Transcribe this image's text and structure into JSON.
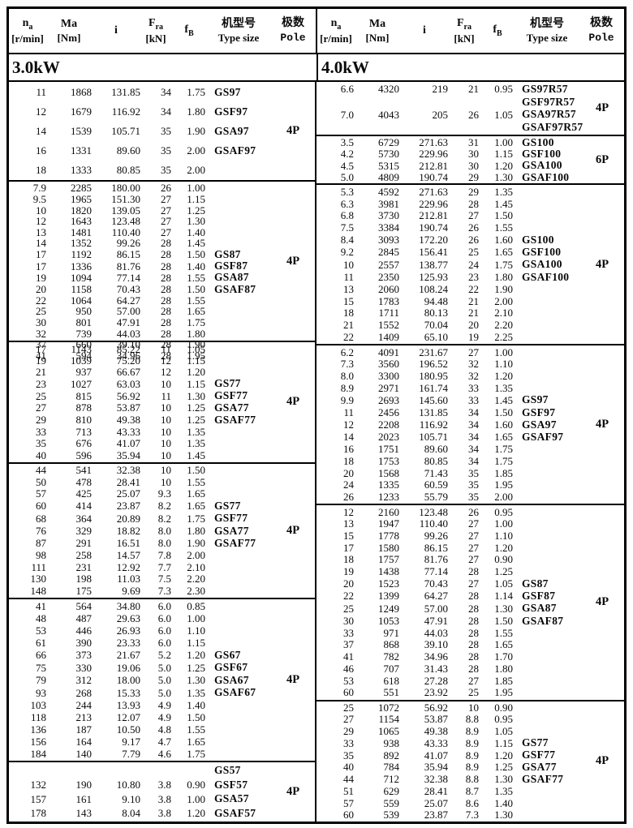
{
  "header": {
    "columns": [
      {
        "sym": "n",
        "sub": "a",
        "unit": "[r/min]"
      },
      {
        "sym": "Ma",
        "sub": "",
        "unit": "[Nm]"
      },
      {
        "sym": "i",
        "sub": "",
        "unit": ""
      },
      {
        "sym": "F",
        "sub": "ra",
        "unit": "[kN]"
      },
      {
        "sym": "f",
        "sub": "B",
        "unit": ""
      },
      {
        "sym": "机型号",
        "sub": "",
        "unit": "Type size"
      },
      {
        "sym": "极数",
        "sub": "",
        "unit": "Pole"
      }
    ]
  },
  "power_groups": [
    {
      "power": "3.0kW",
      "sections": [
        {
          "pole": "4P",
          "type_start": 0,
          "types": [
            "GS97",
            "GSF97",
            "GSA97",
            "GSAF97"
          ],
          "rows": [
            [
              "11",
              "1868",
              "131.85",
              "34",
              "1.75"
            ],
            [
              "12",
              "1679",
              "116.92",
              "34",
              "1.80"
            ],
            [
              "14",
              "1539",
              "105.71",
              "35",
              "1.90"
            ],
            [
              "16",
              "1331",
              "89.60",
              "35",
              "2.00"
            ],
            [
              "18",
              "1333",
              "80.85",
              "35",
              "2.00"
            ]
          ]
        },
        {
          "pole": "4P",
          "type_start": 6,
          "types": [
            "GS87",
            "GSF87",
            "GSA87",
            "GSAF87"
          ],
          "rows": [
            [
              "7.9",
              "2285",
              "180.00",
              "26",
              "1.00"
            ],
            [
              "9.5",
              "1965",
              "151.30",
              "27",
              "1.15"
            ],
            [
              "10",
              "1820",
              "139.05",
              "27",
              "1.25"
            ],
            [
              "12",
              "1643",
              "123.48",
              "27",
              "1.30"
            ],
            [
              "13",
              "1481",
              "110.40",
              "27",
              "1.40"
            ],
            [
              "14",
              "1352",
              "99.26",
              "28",
              "1.45"
            ],
            [
              "17",
              "1192",
              "86.15",
              "28",
              "1.50"
            ],
            [
              "17",
              "1336",
              "81.76",
              "28",
              "1.40"
            ],
            [
              "19",
              "1094",
              "77.14",
              "28",
              "1.55"
            ],
            [
              "20",
              "1158",
              "70.43",
              "28",
              "1.50"
            ],
            [
              "22",
              "1064",
              "64.27",
              "28",
              "1.55"
            ],
            [
              "25",
              "950",
              "57.00",
              "28",
              "1.65"
            ],
            [
              "30",
              "801",
              "47.91",
              "28",
              "1.75"
            ],
            [
              "32",
              "739",
              "44.03",
              "28",
              "1.80"
            ],
            [
              "37",
              "660",
              "39.10",
              "28",
              "1.90"
            ],
            [
              "41",
              "594",
              "34.96",
              "28",
              "1.95"
            ]
          ]
        },
        {
          "pole": "4P",
          "type_start": 3,
          "types": [
            "GS77",
            "GSF77",
            "GSA77",
            "GSAF77"
          ],
          "rows": [
            [
              "17",
              "1143",
              "85.22",
              "11",
              "1.05"
            ],
            [
              "19",
              "1039",
              "75.20",
              "12",
              "1.15"
            ],
            [
              "21",
              "937",
              "66.67",
              "12",
              "1.20"
            ],
            [
              "23",
              "1027",
              "63.03",
              "10",
              "1.15"
            ],
            [
              "25",
              "815",
              "56.92",
              "11",
              "1.30"
            ],
            [
              "27",
              "878",
              "53.87",
              "10",
              "1.25"
            ],
            [
              "29",
              "810",
              "49.38",
              "10",
              "1.25"
            ],
            [
              "33",
              "713",
              "43.33",
              "10",
              "1.35"
            ],
            [
              "35",
              "676",
              "41.07",
              "10",
              "1.35"
            ],
            [
              "40",
              "596",
              "35.94",
              "10",
              "1.45"
            ]
          ]
        },
        {
          "pole": "4P",
          "type_start": 3,
          "types": [
            "GS77",
            "GSF77",
            "GSA77",
            "GSAF77"
          ],
          "rows": [
            [
              "44",
              "541",
              "32.38",
              "10",
              "1.50"
            ],
            [
              "50",
              "478",
              "28.41",
              "10",
              "1.55"
            ],
            [
              "57",
              "425",
              "25.07",
              "9.3",
              "1.65"
            ],
            [
              "60",
              "414",
              "23.87",
              "8.2",
              "1.65"
            ],
            [
              "68",
              "364",
              "20.89",
              "8.2",
              "1.75"
            ],
            [
              "76",
              "329",
              "18.82",
              "8.0",
              "1.80"
            ],
            [
              "87",
              "291",
              "16.51",
              "8.0",
              "1.90"
            ],
            [
              "98",
              "258",
              "14.57",
              "7.8",
              "2.00"
            ],
            [
              "111",
              "231",
              "12.92",
              "7.7",
              "2.10"
            ],
            [
              "130",
              "198",
              "11.03",
              "7.5",
              "2.20"
            ],
            [
              "148",
              "175",
              "9.69",
              "7.3",
              "2.30"
            ]
          ]
        },
        {
          "pole": "4P",
          "type_start": 4,
          "types": [
            "GS67",
            "GSF67",
            "GSA67",
            "GSAF67"
          ],
          "rows": [
            [
              "41",
              "564",
              "34.80",
              "6.0",
              "0.85"
            ],
            [
              "48",
              "487",
              "29.63",
              "6.0",
              "1.00"
            ],
            [
              "53",
              "446",
              "26.93",
              "6.0",
              "1.10"
            ],
            [
              "61",
              "390",
              "23.33",
              "6.0",
              "1.15"
            ],
            [
              "66",
              "373",
              "21.67",
              "5.2",
              "1.20"
            ],
            [
              "75",
              "330",
              "19.06",
              "5.0",
              "1.25"
            ],
            [
              "79",
              "312",
              "18.00",
              "5.0",
              "1.30"
            ],
            [
              "93",
              "268",
              "15.33",
              "5.0",
              "1.35"
            ],
            [
              "103",
              "244",
              "13.93",
              "4.9",
              "1.40"
            ],
            [
              "118",
              "213",
              "12.07",
              "4.9",
              "1.50"
            ],
            [
              "136",
              "187",
              "10.50",
              "4.8",
              "1.55"
            ],
            [
              "156",
              "164",
              "9.17",
              "4.7",
              "1.65"
            ],
            [
              "184",
              "140",
              "7.79",
              "4.6",
              "1.75"
            ]
          ]
        },
        {
          "pole": "4P",
          "type_start": 0,
          "types": [
            "GS57",
            "GSF57",
            "GSA57",
            "GSAF57"
          ],
          "rows": [
            [
              "",
              "",
              "",
              "",
              ""
            ],
            [
              "132",
              "190",
              "10.80",
              "3.8",
              "0.90"
            ],
            [
              "157",
              "161",
              "9.10",
              "3.8",
              "1.00"
            ],
            [
              "178",
              "143",
              "8.04",
              "3.8",
              "1.20"
            ]
          ]
        }
      ]
    },
    {
      "power": "4.0kW",
      "sections": [
        {
          "pole": "4P",
          "type_start": 0,
          "types": [
            "GS97R57",
            "GSF97R57",
            "GSA97R57",
            "GSAF97R57"
          ],
          "rows": [
            [
              "6.6",
              "4320",
              "219",
              "21",
              "0.95"
            ],
            [
              "",
              "",
              "",
              "",
              ""
            ],
            [
              "7.0",
              "4043",
              "205",
              "26",
              "1.05"
            ],
            [
              "",
              "",
              "",
              "",
              ""
            ]
          ]
        },
        {
          "pole": "6P",
          "type_start": 0,
          "types": [
            "GS100",
            "GSF100",
            "GSA100",
            "GSAF100"
          ],
          "rows": [
            [
              "3.5",
              "6729",
              "271.63",
              "31",
              "1.00"
            ],
            [
              "4.2",
              "5730",
              "229.96",
              "30",
              "1.15"
            ],
            [
              "4.5",
              "5315",
              "212.81",
              "30",
              "1.20"
            ],
            [
              "5.0",
              "4809",
              "190.74",
              "29",
              "1.30"
            ]
          ]
        },
        {
          "pole": "4P",
          "type_start": 4,
          "types": [
            "GS100",
            "GSF100",
            "GSA100",
            "GSAF100"
          ],
          "rows": [
            [
              "5.3",
              "4592",
              "271.63",
              "29",
              "1.35"
            ],
            [
              "6.3",
              "3981",
              "229.96",
              "28",
              "1.45"
            ],
            [
              "6.8",
              "3730",
              "212.81",
              "27",
              "1.50"
            ],
            [
              "7.5",
              "3384",
              "190.74",
              "26",
              "1.55"
            ],
            [
              "8.4",
              "3093",
              "172.20",
              "26",
              "1.60"
            ],
            [
              "9.2",
              "2845",
              "156.41",
              "25",
              "1.65"
            ],
            [
              "10",
              "2557",
              "138.77",
              "24",
              "1.75"
            ],
            [
              "11",
              "2350",
              "125.93",
              "23",
              "1.80"
            ],
            [
              "13",
              "2060",
              "108.24",
              "22",
              "1.90"
            ],
            [
              "15",
              "1783",
              "94.48",
              "21",
              "2.00"
            ],
            [
              "18",
              "1711",
              "80.13",
              "21",
              "2.10"
            ],
            [
              "21",
              "1552",
              "70.04",
              "20",
              "2.20"
            ],
            [
              "22",
              "1409",
              "65.10",
              "19",
              "2.25"
            ]
          ]
        },
        {
          "pole": "4P",
          "type_start": 4,
          "types": [
            "GS97",
            "GSF97",
            "GSA97",
            "GSAF97"
          ],
          "rows": [
            [
              "6.2",
              "4091",
              "231.67",
              "27",
              "1.00"
            ],
            [
              "7.3",
              "3560",
              "196.52",
              "32",
              "1.10"
            ],
            [
              "8.0",
              "3300",
              "180.95",
              "32",
              "1.20"
            ],
            [
              "8.9",
              "2971",
              "161.74",
              "33",
              "1.35"
            ],
            [
              "9.9",
              "2693",
              "145.60",
              "33",
              "1.45"
            ],
            [
              "11",
              "2456",
              "131.85",
              "34",
              "1.50"
            ],
            [
              "12",
              "2208",
              "116.92",
              "34",
              "1.60"
            ],
            [
              "14",
              "2023",
              "105.71",
              "34",
              "1.65"
            ],
            [
              "16",
              "1751",
              "89.60",
              "34",
              "1.75"
            ],
            [
              "18",
              "1753",
              "80.85",
              "34",
              "1.75"
            ],
            [
              "20",
              "1568",
              "71.43",
              "35",
              "1.85"
            ],
            [
              "24",
              "1335",
              "60.59",
              "35",
              "1.95"
            ],
            [
              "26",
              "1233",
              "55.79",
              "35",
              "2.00"
            ]
          ]
        },
        {
          "pole": "4P",
          "type_start": 6,
          "types": [
            "GS87",
            "GSF87",
            "GSA87",
            "GSAF87"
          ],
          "rows": [
            [
              "12",
              "2160",
              "123.48",
              "26",
              "0.95"
            ],
            [
              "13",
              "1947",
              "110.40",
              "27",
              "1.00"
            ],
            [
              "15",
              "1778",
              "99.26",
              "27",
              "1.10"
            ],
            [
              "17",
              "1580",
              "86.15",
              "27",
              "1.20"
            ],
            [
              "18",
              "1757",
              "81.76",
              "27",
              "0.90"
            ],
            [
              "19",
              "1438",
              "77.14",
              "28",
              "1.25"
            ],
            [
              "20",
              "1523",
              "70.43",
              "27",
              "1.05"
            ],
            [
              "22",
              "1399",
              "64.27",
              "28",
              "1.14"
            ],
            [
              "25",
              "1249",
              "57.00",
              "28",
              "1.30"
            ],
            [
              "30",
              "1053",
              "47.91",
              "28",
              "1.50"
            ],
            [
              "33",
              "971",
              "44.03",
              "28",
              "1.55"
            ],
            [
              "37",
              "868",
              "39.10",
              "28",
              "1.65"
            ],
            [
              "41",
              "782",
              "34.96",
              "28",
              "1.70"
            ],
            [
              "46",
              "707",
              "31.43",
              "28",
              "1.80"
            ],
            [
              "53",
              "618",
              "27.28",
              "27",
              "1.85"
            ],
            [
              "60",
              "551",
              "23.92",
              "25",
              "1.95"
            ]
          ]
        },
        {
          "pole": "4P",
          "type_start": 3,
          "types": [
            "GS77",
            "GSF77",
            "GSA77",
            "GSAF77"
          ],
          "rows": [
            [
              "25",
              "1072",
              "56.92",
              "10",
              "0.90"
            ],
            [
              "27",
              "1154",
              "53.87",
              "8.8",
              "0.95"
            ],
            [
              "29",
              "1065",
              "49.38",
              "8.9",
              "1.05"
            ],
            [
              "33",
              "938",
              "43.33",
              "8.9",
              "1.15"
            ],
            [
              "35",
              "892",
              "41.07",
              "8.9",
              "1.20"
            ],
            [
              "40",
              "784",
              "35.94",
              "8.9",
              "1.25"
            ],
            [
              "44",
              "712",
              "32.38",
              "8.8",
              "1.30"
            ],
            [
              "51",
              "629",
              "28.41",
              "8.7",
              "1.35"
            ],
            [
              "57",
              "559",
              "25.07",
              "8.6",
              "1.40"
            ],
            [
              "60",
              "539",
              "23.87",
              "7.3",
              "1.30"
            ]
          ]
        }
      ]
    }
  ]
}
